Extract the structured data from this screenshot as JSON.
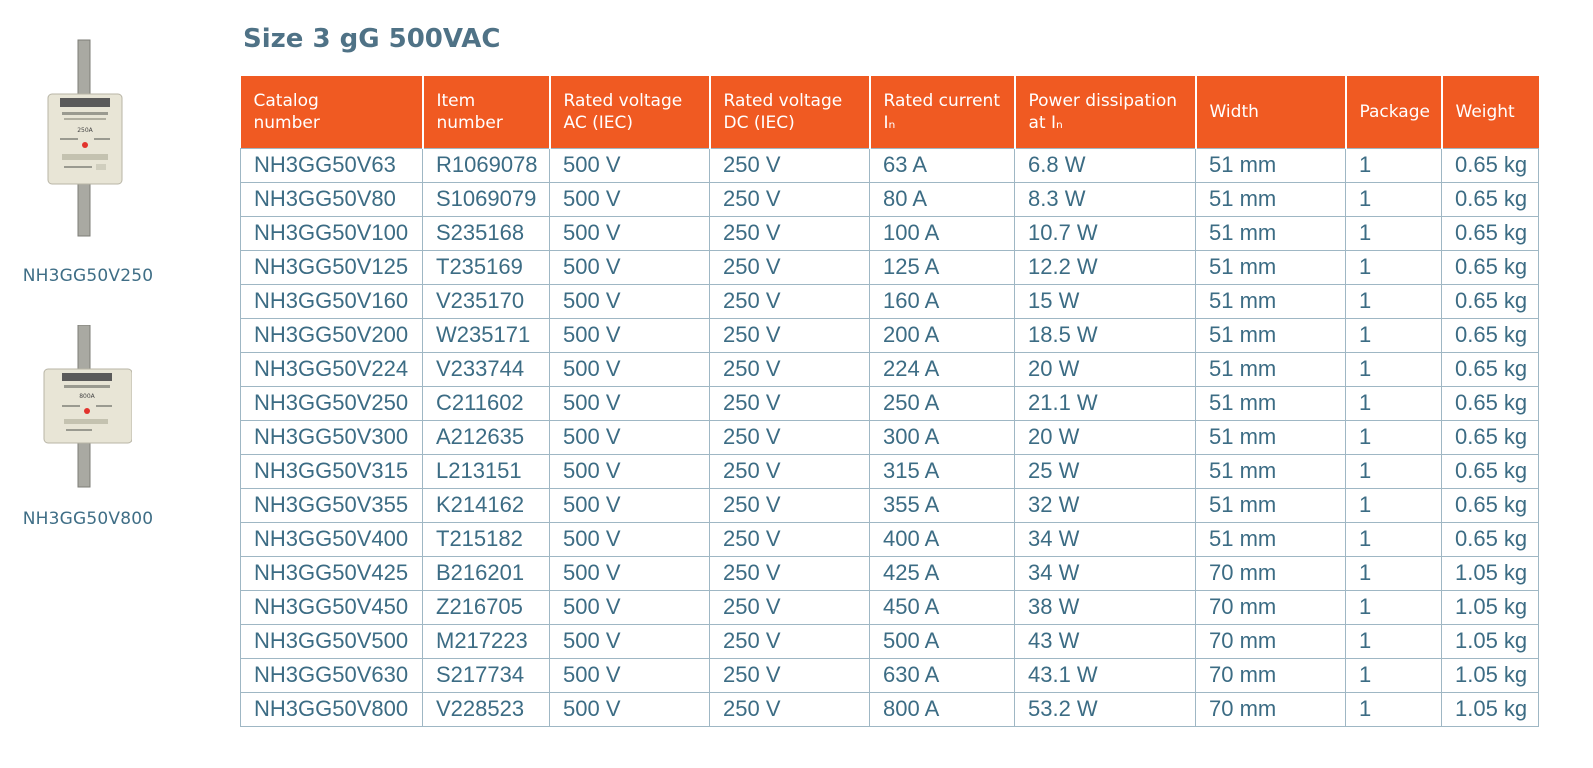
{
  "title": "Size 3 gG 500VAC",
  "images": [
    {
      "caption": "NH3GG50V250",
      "label_text": "250A"
    },
    {
      "caption": "NH3GG50V800",
      "label_text": "800A"
    }
  ],
  "table": {
    "headers": [
      {
        "line1": "Catalog",
        "line2": "number"
      },
      {
        "line1": "Item",
        "line2": "number"
      },
      {
        "line1": "Rated voltage",
        "line2": "AC (IEC)"
      },
      {
        "line1": "Rated voltage",
        "line2": "DC (IEC)"
      },
      {
        "line1": "Rated current",
        "line2": "Iₙ"
      },
      {
        "line1": "Power dissipation",
        "line2": "at Iₙ"
      },
      {
        "line1": "Width",
        "line2": ""
      },
      {
        "line1": "Package",
        "line2": ""
      },
      {
        "line1": "Weight",
        "line2": ""
      }
    ],
    "rows": [
      [
        "NH3GG50V63",
        "R1069078",
        "500 V",
        "250 V",
        "63 A",
        "6.8 W",
        "51 mm",
        "1",
        "0.65 kg"
      ],
      [
        "NH3GG50V80",
        "S1069079",
        "500 V",
        "250 V",
        "80 A",
        "8.3 W",
        "51 mm",
        "1",
        "0.65 kg"
      ],
      [
        "NH3GG50V100",
        "S235168",
        "500 V",
        "250 V",
        "100 A",
        "10.7 W",
        "51 mm",
        "1",
        "0.65 kg"
      ],
      [
        "NH3GG50V125",
        "T235169",
        "500 V",
        "250 V",
        "125 A",
        "12.2 W",
        "51 mm",
        "1",
        "0.65 kg"
      ],
      [
        "NH3GG50V160",
        "V235170",
        "500 V",
        "250 V",
        "160 A",
        "15 W",
        "51 mm",
        "1",
        "0.65 kg"
      ],
      [
        "NH3GG50V200",
        "W235171",
        "500 V",
        "250 V",
        "200 A",
        "18.5 W",
        "51 mm",
        "1",
        "0.65 kg"
      ],
      [
        "NH3GG50V224",
        "V233744",
        "500 V",
        "250 V",
        "224 A",
        "20 W",
        "51 mm",
        "1",
        "0.65 kg"
      ],
      [
        "NH3GG50V250",
        "C211602",
        "500 V",
        "250 V",
        "250 A",
        "21.1 W",
        "51 mm",
        "1",
        "0.65 kg"
      ],
      [
        "NH3GG50V300",
        "A212635",
        "500 V",
        "250 V",
        "300 A",
        "20 W",
        "51 mm",
        "1",
        "0.65 kg"
      ],
      [
        "NH3GG50V315",
        "L213151",
        "500 V",
        "250 V",
        "315 A",
        "25 W",
        "51 mm",
        "1",
        "0.65 kg"
      ],
      [
        "NH3GG50V355",
        "K214162",
        "500 V",
        "250 V",
        "355 A",
        "32 W",
        "51 mm",
        "1",
        "0.65 kg"
      ],
      [
        "NH3GG50V400",
        "T215182",
        "500 V",
        "250 V",
        "400 A",
        "34 W",
        "51 mm",
        "1",
        "0.65 kg"
      ],
      [
        "NH3GG50V425",
        "B216201",
        "500 V",
        "250 V",
        "425 A",
        "34 W",
        "70 mm",
        "1",
        "1.05 kg"
      ],
      [
        "NH3GG50V450",
        "Z216705",
        "500 V",
        "250 V",
        "450 A",
        "38 W",
        "70 mm",
        "1",
        "1.05 kg"
      ],
      [
        "NH3GG50V500",
        "M217223",
        "500 V",
        "250 V",
        "500 A",
        "43 W",
        "70 mm",
        "1",
        "1.05 kg"
      ],
      [
        "NH3GG50V630",
        "S217734",
        "500 V",
        "250 V",
        "630 A",
        "43.1 W",
        "70 mm",
        "1",
        "1.05 kg"
      ],
      [
        "NH3GG50V800",
        "V228523",
        "500 V",
        "250 V",
        "800 A",
        "53.2 W",
        "70 mm",
        "1",
        "1.05 kg"
      ]
    ]
  },
  "colors": {
    "header_bg": "#f05a22",
    "text": "#3c6c84",
    "title": "#4f7286",
    "grid": "#9fb7c4"
  }
}
